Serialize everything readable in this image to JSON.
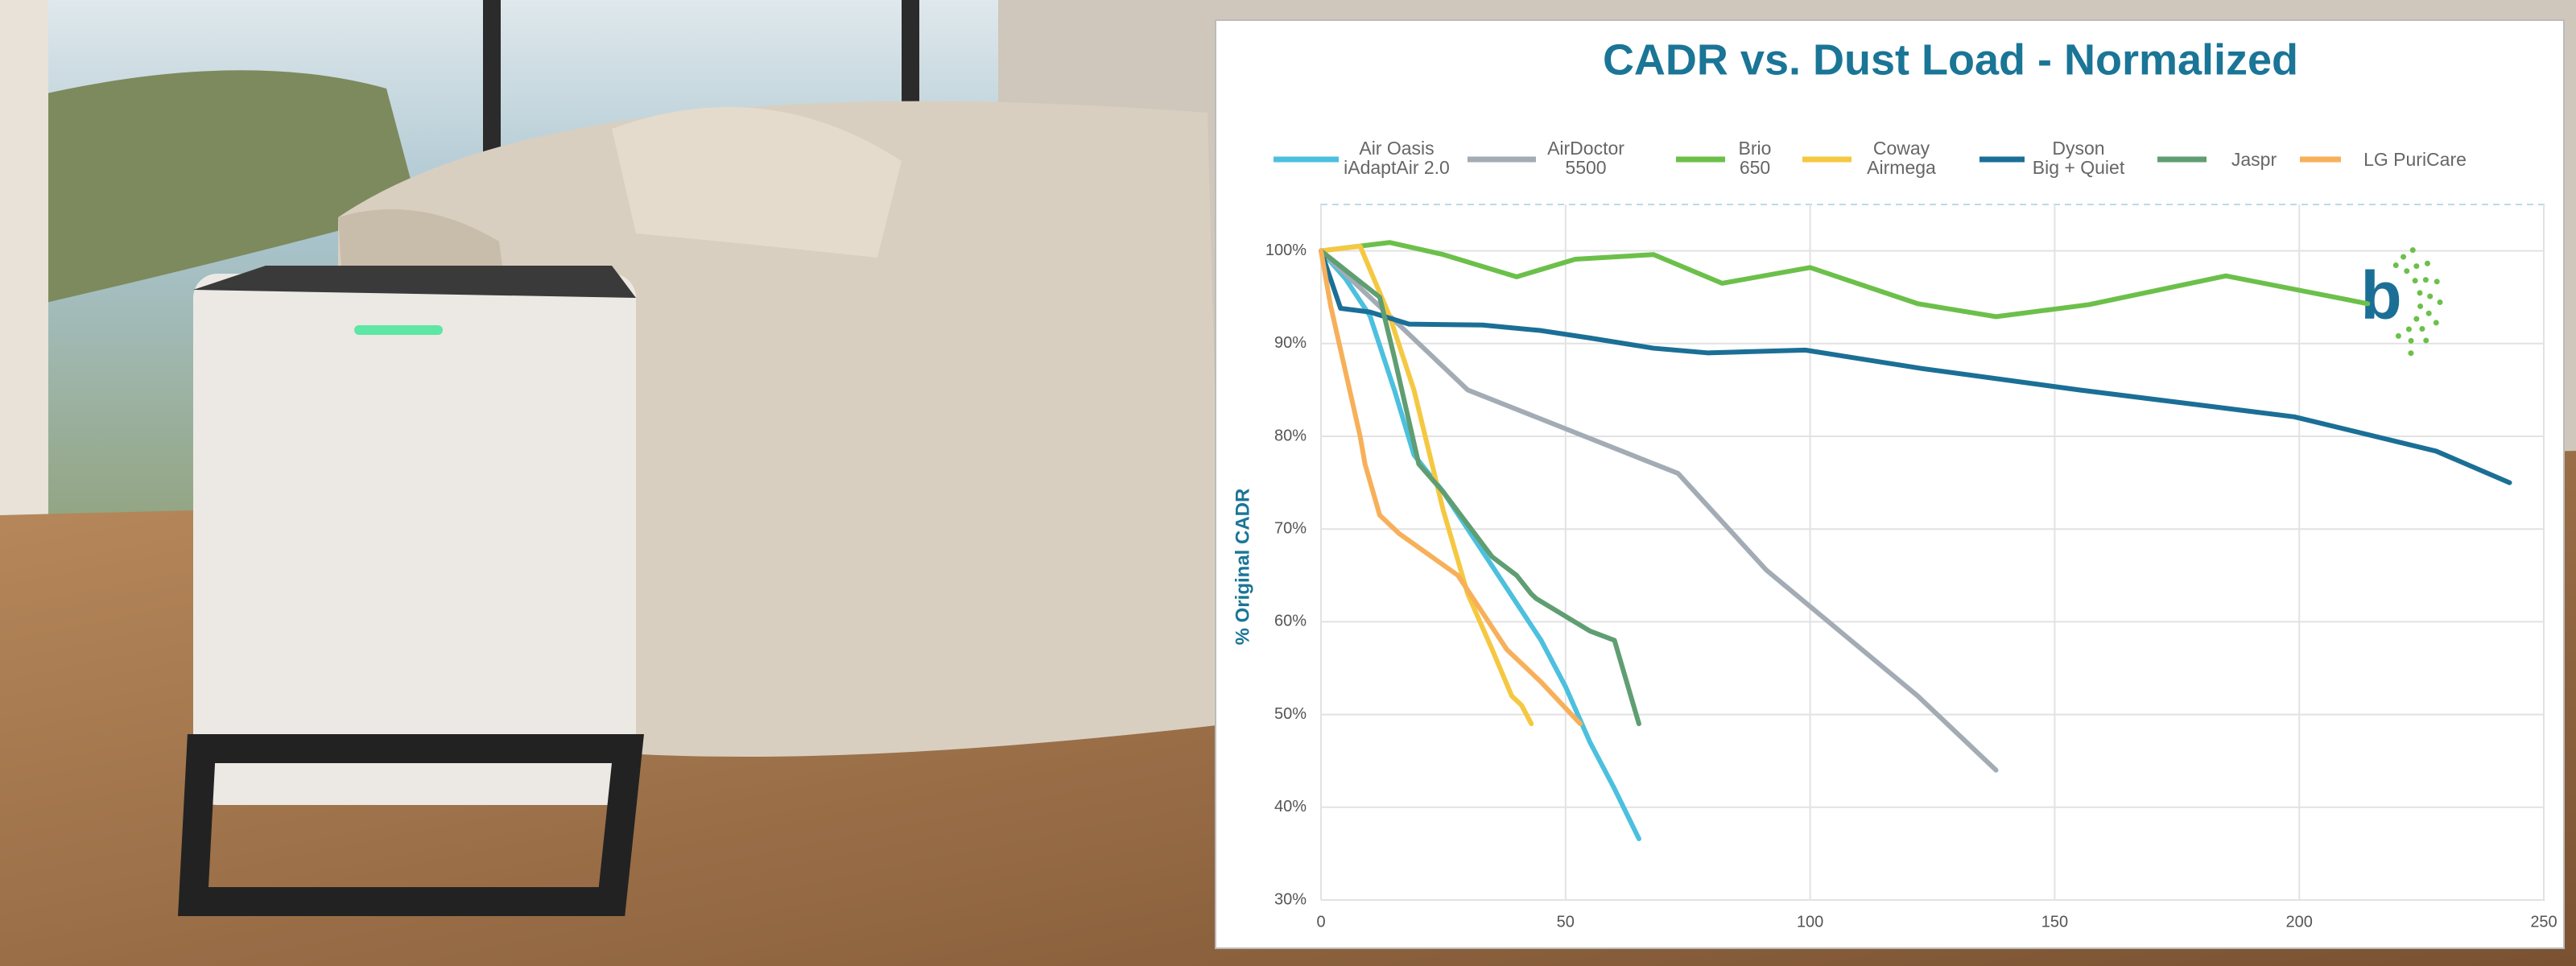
{
  "chart_data": {
    "type": "line",
    "title": "CADR vs. Dust Load - Normalized",
    "ylabel": "% Original CADR",
    "logo": "b",
    "xlim": [
      0,
      250
    ],
    "ylim": [
      30,
      105
    ],
    "xticks": [
      0,
      50,
      100,
      150,
      200,
      250
    ],
    "yticks": [
      {
        "value": 30,
        "label": "30%"
      },
      {
        "value": 40,
        "label": "40%"
      },
      {
        "value": 50,
        "label": "50%"
      },
      {
        "value": 60,
        "label": "60%"
      },
      {
        "value": 70,
        "label": "70%"
      },
      {
        "value": 80,
        "label": "80%"
      },
      {
        "value": 90,
        "label": "90%"
      },
      {
        "value": 100,
        "label": "100%"
      }
    ],
    "grid": true,
    "legend": "top",
    "series": [
      {
        "name": "Air Oasis\niAdaptAir 2.0",
        "color": "#4cc0de",
        "x": [
          0,
          5,
          10,
          15,
          19,
          25,
          30,
          35,
          40,
          45,
          50,
          55,
          60,
          65
        ],
        "values": [
          100,
          97,
          93,
          85,
          78,
          74,
          70,
          66,
          62,
          58,
          53,
          47,
          42,
          36.6
        ]
      },
      {
        "name": "AirDoctor\n5500",
        "color": "#a3acb5",
        "x": [
          0,
          30,
          73,
          91,
          122,
          138
        ],
        "values": [
          100,
          85,
          76,
          65.6,
          52,
          44
        ]
      },
      {
        "name": "Brio\n650",
        "color": "#6cc04a",
        "x": [
          0,
          14,
          25,
          40,
          52,
          68,
          82,
          100,
          122,
          138,
          157,
          185,
          214
        ],
        "values": [
          100,
          100.9,
          99.6,
          97.2,
          99.1,
          99.6,
          96.5,
          98.2,
          94.3,
          92.9,
          94.2,
          97.3,
          94.3
        ]
      },
      {
        "name": "Coway\nAirmega",
        "color": "#f5c842",
        "x": [
          0,
          8,
          14,
          19,
          25,
          30,
          35,
          39,
          41,
          43
        ],
        "values": [
          100,
          100.5,
          93,
          85,
          72,
          63,
          57,
          52,
          51,
          49
        ]
      },
      {
        "name": "Dyson\nBig + Quiet",
        "color": "#1b6f96",
        "x": [
          0,
          4,
          10,
          18,
          33,
          45,
          55,
          68,
          79,
          99,
          123,
          155,
          199,
          228,
          243
        ],
        "values": [
          100,
          93.8,
          93.4,
          92.1,
          92,
          91.4,
          90.6,
          89.5,
          89,
          89.3,
          87.3,
          85,
          82.1,
          78.4,
          75
        ]
      },
      {
        "name": "Jaspr",
        "color": "#5f9e72",
        "x": [
          0,
          12,
          15,
          20,
          25,
          35,
          40,
          43,
          44,
          55,
          60,
          65
        ],
        "values": [
          100,
          95,
          88.5,
          77,
          74,
          67,
          65,
          63,
          62.5,
          59,
          58,
          49
        ]
      },
      {
        "name": "LG PuriCare",
        "color": "#f7b05a",
        "x": [
          0,
          2,
          5,
          8,
          9,
          12,
          16,
          28,
          33,
          38,
          45,
          53
        ],
        "values": [
          100,
          94,
          87,
          80,
          77,
          71.5,
          69.5,
          65,
          61,
          57,
          53.5,
          49
        ]
      }
    ]
  }
}
